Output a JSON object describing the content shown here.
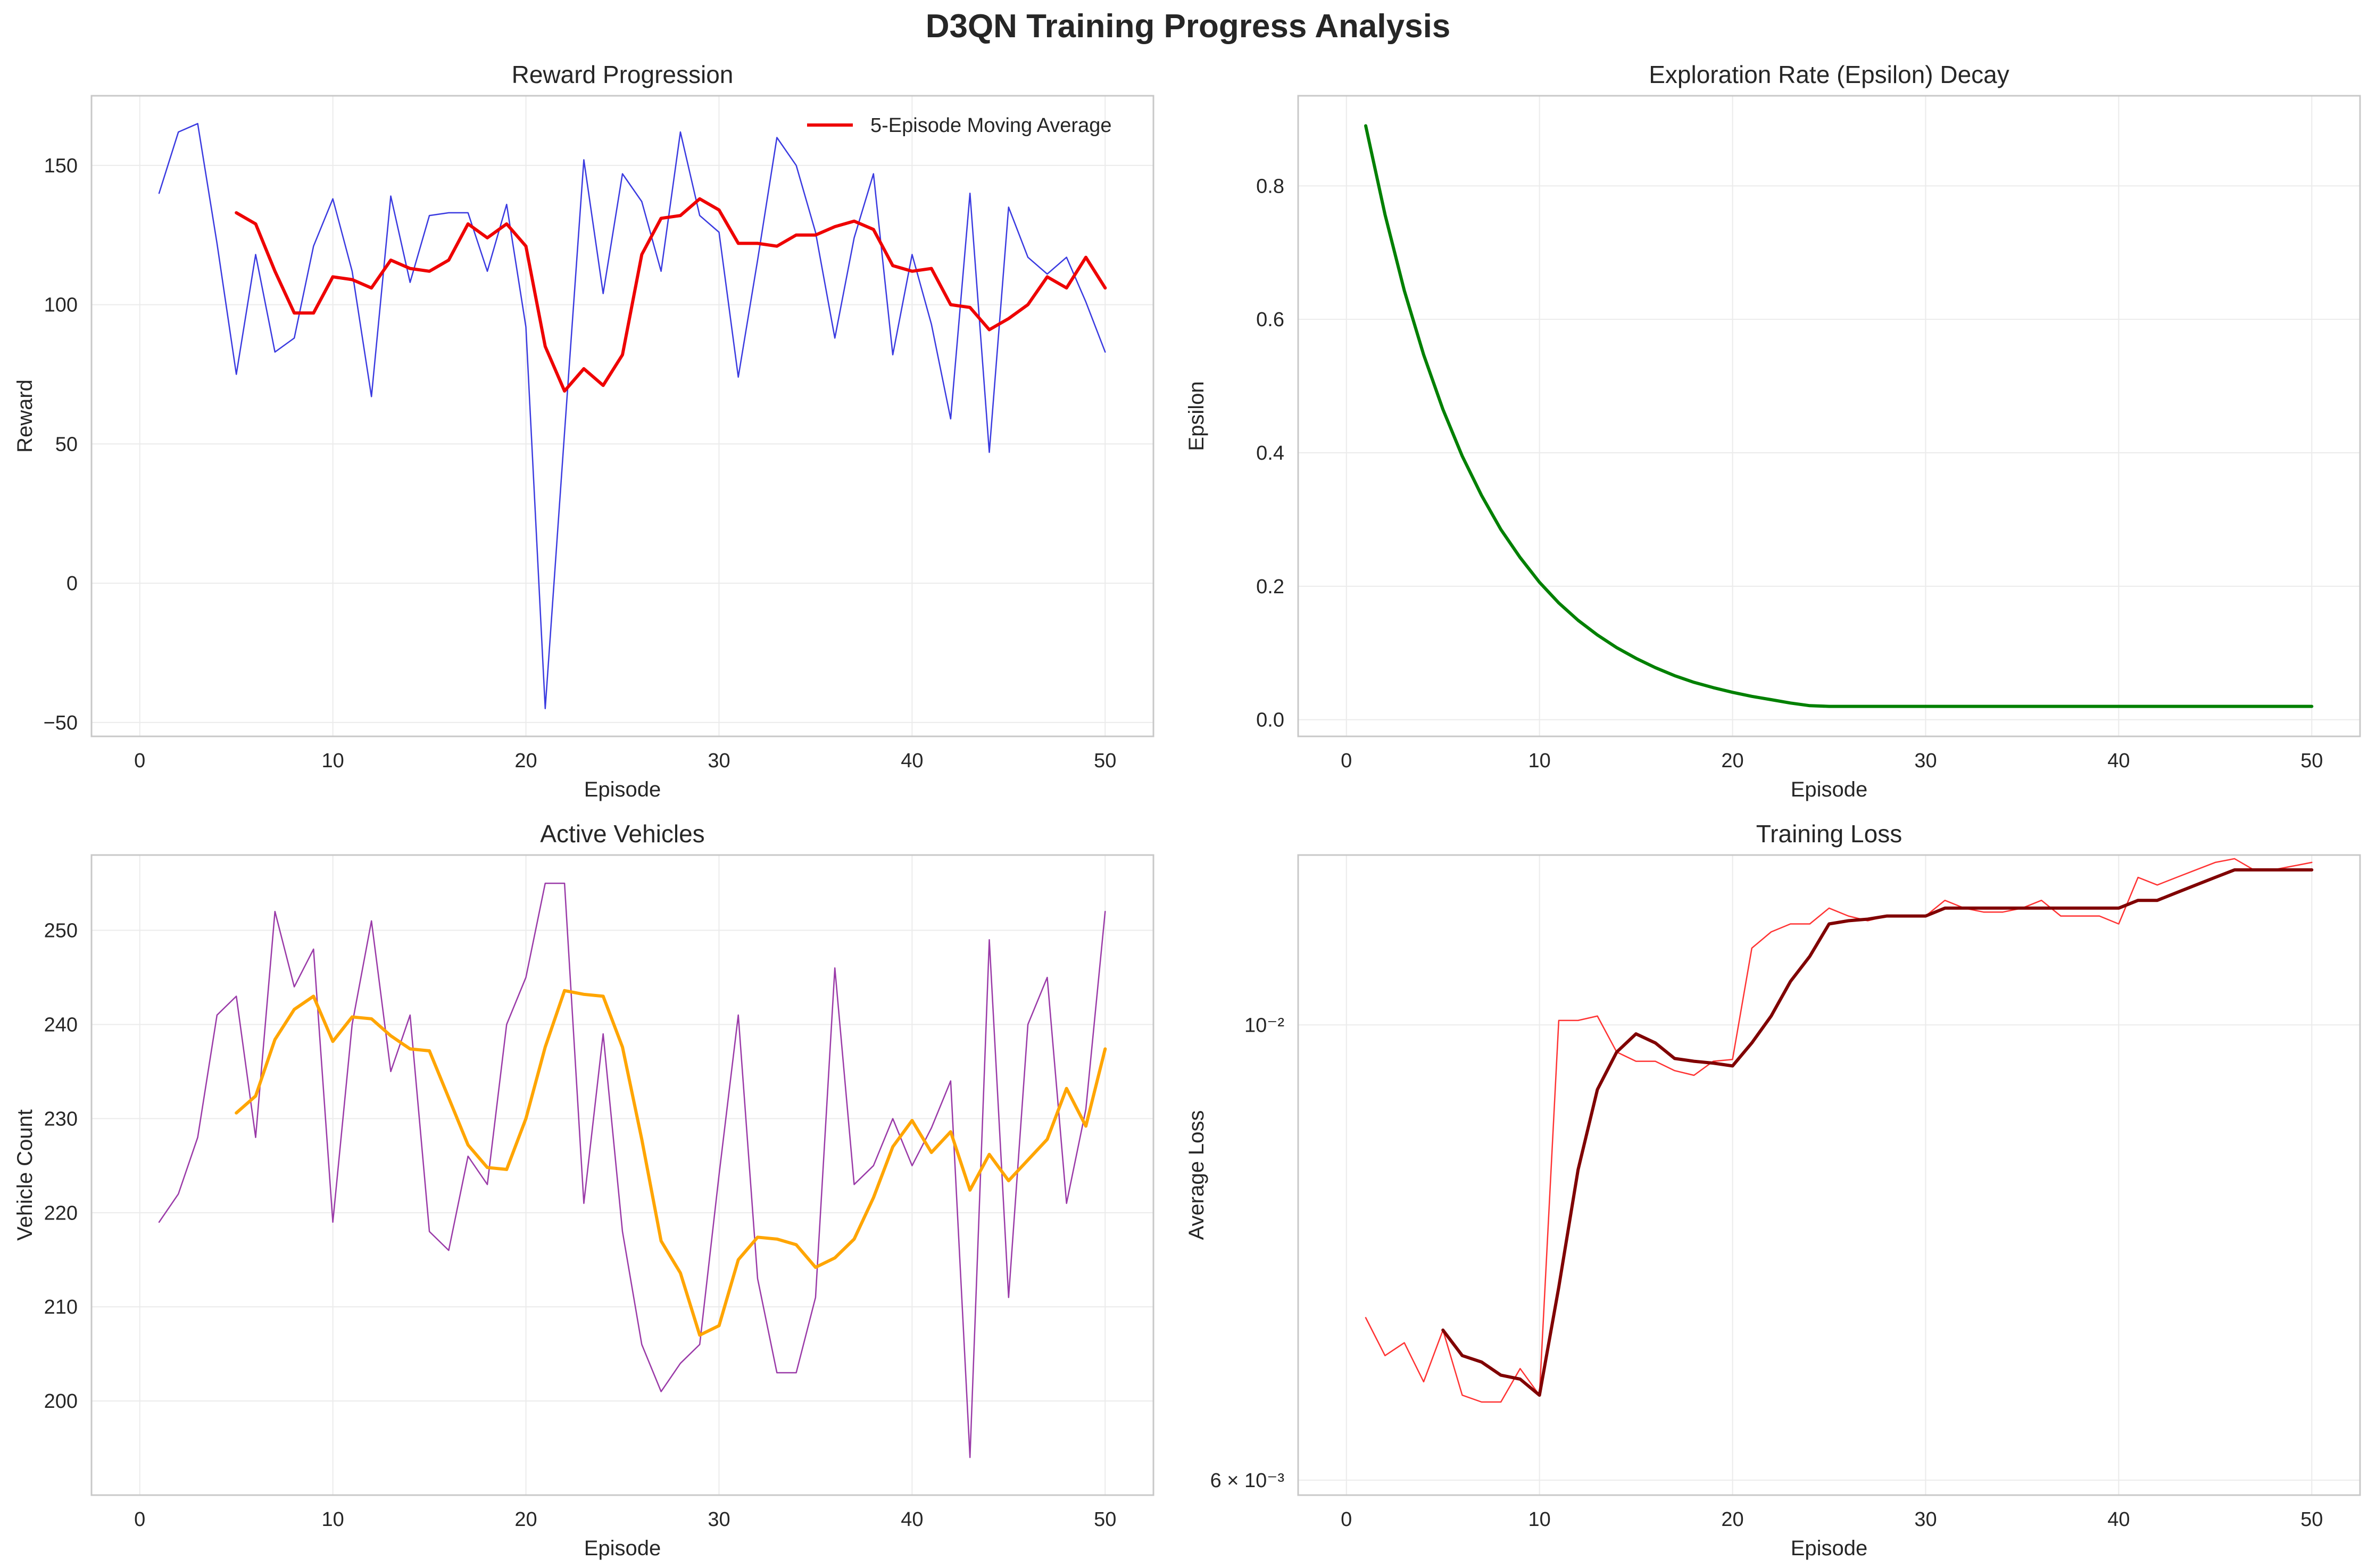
{
  "figure": {
    "title": "D3QN Training Progress Analysis"
  },
  "chart_data": [
    {
      "type": "line",
      "title": "Reward Progression",
      "xlabel": "Episode",
      "ylabel": "Reward",
      "xlim": [
        -2.5,
        52.5
      ],
      "ylim": [
        -55,
        175
      ],
      "xticks": [
        0,
        10,
        20,
        30,
        40,
        50
      ],
      "xtick_labels": [
        "0",
        "10",
        "20",
        "30",
        "40",
        "50"
      ],
      "yticks": [
        -50,
        0,
        50,
        100,
        150
      ],
      "ytick_labels": [
        "−50",
        "0",
        "50",
        "100",
        "150"
      ],
      "grid": true,
      "legend": "top-right",
      "series": [
        {
          "color": "#3a3ae0",
          "width": 2.5,
          "x": [
            1,
            2,
            3,
            4,
            5,
            6,
            7,
            8,
            9,
            10,
            11,
            12,
            13,
            14,
            15,
            16,
            17,
            18,
            19,
            20,
            21,
            22,
            23,
            24,
            25,
            26,
            27,
            28,
            29,
            30,
            31,
            32,
            33,
            34,
            35,
            36,
            37,
            38,
            39,
            40,
            41,
            42,
            43,
            44,
            45,
            46,
            47,
            48,
            49,
            50
          ],
          "y": [
            140,
            162,
            165,
            122,
            75,
            118,
            83,
            88,
            121,
            138,
            112,
            67,
            139,
            108,
            132,
            133,
            133,
            112,
            136,
            92,
            -45,
            54,
            152,
            104,
            147,
            137,
            112,
            162,
            132,
            126,
            74,
            116,
            160,
            150,
            126,
            88,
            124,
            147,
            82,
            118,
            93,
            59,
            140,
            47,
            135,
            117,
            111,
            117,
            101,
            83
          ]
        },
        {
          "name": "5-Episode Moving Average",
          "color": "#ee0000",
          "width": 6,
          "x": [
            5,
            6,
            7,
            8,
            9,
            10,
            11,
            12,
            13,
            14,
            15,
            16,
            17,
            18,
            19,
            20,
            21,
            22,
            23,
            24,
            25,
            26,
            27,
            28,
            29,
            30,
            31,
            32,
            33,
            34,
            35,
            36,
            37,
            38,
            39,
            40,
            41,
            42,
            43,
            44,
            45,
            46,
            47,
            48,
            49,
            50
          ],
          "y": [
            133,
            129,
            112,
            97,
            97,
            110,
            109,
            106,
            116,
            113,
            112,
            116,
            129,
            124,
            129,
            121,
            85,
            69,
            77,
            71,
            82,
            118,
            131,
            132,
            138,
            134,
            122,
            122,
            121,
            125,
            125,
            128,
            130,
            127,
            114,
            112,
            113,
            100,
            99,
            91,
            95,
            100,
            110,
            106,
            117,
            106
          ]
        }
      ]
    },
    {
      "type": "line",
      "title": "Exploration Rate (Epsilon) Decay",
      "xlabel": "Episode",
      "ylabel": "Epsilon",
      "xlim": [
        -2.5,
        52.5
      ],
      "ylim": [
        -0.025,
        0.935
      ],
      "xticks": [
        0,
        10,
        20,
        30,
        40,
        50
      ],
      "xtick_labels": [
        "0",
        "10",
        "20",
        "30",
        "40",
        "50"
      ],
      "yticks": [
        0.0,
        0.2,
        0.4,
        0.6,
        0.8
      ],
      "ytick_labels": [
        "0.0",
        "0.2",
        "0.4",
        "0.6",
        "0.8"
      ],
      "grid": true,
      "series": [
        {
          "color": "#008000",
          "width": 6,
          "x": [
            1,
            2,
            3,
            4,
            5,
            6,
            7,
            8,
            9,
            10,
            11,
            12,
            13,
            14,
            15,
            16,
            17,
            18,
            19,
            20,
            21,
            22,
            23,
            24,
            25,
            26,
            27,
            28,
            29,
            30,
            31,
            32,
            33,
            34,
            35,
            36,
            37,
            38,
            39,
            40,
            41,
            42,
            43,
            44,
            45,
            46,
            47,
            48,
            49,
            50
          ],
          "y": [
            0.89,
            0.757,
            0.643,
            0.547,
            0.465,
            0.395,
            0.336,
            0.285,
            0.243,
            0.206,
            0.175,
            0.149,
            0.127,
            0.108,
            0.092,
            0.078,
            0.066,
            0.056,
            0.048,
            0.041,
            0.035,
            0.03,
            0.025,
            0.021,
            0.02,
            0.02,
            0.02,
            0.02,
            0.02,
            0.02,
            0.02,
            0.02,
            0.02,
            0.02,
            0.02,
            0.02,
            0.02,
            0.02,
            0.02,
            0.02,
            0.02,
            0.02,
            0.02,
            0.02,
            0.02,
            0.02,
            0.02,
            0.02,
            0.02,
            0.02
          ]
        }
      ]
    },
    {
      "type": "line",
      "title": "Active Vehicles",
      "xlabel": "Episode",
      "ylabel": "Vehicle Count",
      "xlim": [
        -2.5,
        52.5
      ],
      "ylim": [
        190,
        258
      ],
      "xticks": [
        0,
        10,
        20,
        30,
        40,
        50
      ],
      "xtick_labels": [
        "0",
        "10",
        "20",
        "30",
        "40",
        "50"
      ],
      "yticks": [
        200,
        210,
        220,
        230,
        240,
        250
      ],
      "ytick_labels": [
        "200",
        "210",
        "220",
        "230",
        "240",
        "250"
      ],
      "grid": true,
      "series": [
        {
          "color": "#9a3aa8",
          "width": 2.5,
          "x": [
            1,
            2,
            3,
            4,
            5,
            6,
            7,
            8,
            9,
            10,
            11,
            12,
            13,
            14,
            15,
            16,
            17,
            18,
            19,
            20,
            21,
            22,
            23,
            24,
            25,
            26,
            27,
            28,
            29,
            30,
            31,
            32,
            33,
            34,
            35,
            36,
            37,
            38,
            39,
            40,
            41,
            42,
            43,
            44,
            45,
            46,
            47,
            48,
            49,
            50
          ],
          "y": [
            219,
            222,
            228,
            241,
            243,
            228,
            252,
            244,
            248,
            219,
            240,
            251,
            235,
            241,
            218,
            216,
            226,
            223,
            240,
            245,
            255,
            255,
            221,
            239,
            218,
            206,
            201,
            204,
            206,
            224,
            241,
            213,
            203,
            203,
            211,
            246,
            223,
            225,
            230,
            225,
            229,
            234,
            194,
            249,
            211,
            240,
            245,
            221,
            231,
            252
          ]
        },
        {
          "color": "#ffa500",
          "width": 6,
          "x": [
            5,
            6,
            7,
            8,
            9,
            10,
            11,
            12,
            13,
            14,
            15,
            16,
            17,
            18,
            19,
            20,
            21,
            22,
            23,
            24,
            25,
            26,
            27,
            28,
            29,
            30,
            31,
            32,
            33,
            34,
            35,
            36,
            37,
            38,
            39,
            40,
            41,
            42,
            43,
            44,
            45,
            46,
            47,
            48,
            49,
            50
          ],
          "y": [
            230.6,
            232.4,
            238.4,
            241.6,
            243,
            238.2,
            240.8,
            240.6,
            238.8,
            237.4,
            237.2,
            232.2,
            227.2,
            224.8,
            224.6,
            230,
            237.6,
            243.6,
            243.2,
            243,
            237.6,
            227.8,
            217,
            213.6,
            207,
            208,
            215,
            217.4,
            217.2,
            216.6,
            214.2,
            215.2,
            217.2,
            221.6,
            227,
            229.8,
            226.4,
            228.6,
            222.4,
            226.2,
            223.4,
            225.6,
            227.8,
            233.2,
            229.2,
            237.4
          ]
        }
      ]
    },
    {
      "type": "line",
      "title": "Training Loss",
      "xlabel": "Episode",
      "ylabel": "Average Loss",
      "yscale": "log",
      "xlim": [
        -2.5,
        52.5
      ],
      "ylim": [
        0.0059,
        0.0121
      ],
      "xticks": [
        0,
        10,
        20,
        30,
        40,
        50
      ],
      "xtick_labels": [
        "0",
        "10",
        "20",
        "30",
        "40",
        "50"
      ],
      "yticks": [
        0.006,
        0.01
      ],
      "ytick_labels": [
        "6 × 10⁻³",
        "10⁻²"
      ],
      "grid": true,
      "series": [
        {
          "color": "#ff3333",
          "width": 2.5,
          "x": [
            1,
            2,
            3,
            4,
            5,
            6,
            7,
            8,
            9,
            10,
            11,
            12,
            13,
            14,
            15,
            16,
            17,
            18,
            19,
            20,
            21,
            22,
            23,
            24,
            25,
            26,
            27,
            28,
            29,
            30,
            31,
            32,
            33,
            34,
            35,
            36,
            37,
            38,
            39,
            40,
            41,
            42,
            43,
            44,
            45,
            46,
            47,
            48,
            49,
            50
          ],
          "y": [
            0.0072,
            0.0069,
            0.007,
            0.0067,
            0.0071,
            0.0066,
            0.00655,
            0.00655,
            0.0068,
            0.0066,
            0.01005,
            0.01005,
            0.0101,
            0.0097,
            0.0096,
            0.0096,
            0.0095,
            0.00945,
            0.0096,
            0.00962,
            0.0109,
            0.0111,
            0.0112,
            0.0112,
            0.0114,
            0.0113,
            0.01124,
            0.0113,
            0.0113,
            0.0113,
            0.0115,
            0.0114,
            0.01135,
            0.01135,
            0.0114,
            0.0115,
            0.0113,
            0.0113,
            0.0113,
            0.0112,
            0.0118,
            0.0117,
            0.0118,
            0.0119,
            0.012,
            0.01205,
            0.0119,
            0.0119,
            0.01195,
            0.012
          ]
        },
        {
          "color": "#800000",
          "width": 6,
          "x": [
            5,
            6,
            7,
            8,
            9,
            10,
            11,
            12,
            13,
            14,
            15,
            16,
            17,
            18,
            19,
            20,
            21,
            22,
            23,
            24,
            25,
            26,
            27,
            28,
            29,
            30,
            31,
            32,
            33,
            34,
            35,
            36,
            37,
            38,
            39,
            40,
            41,
            42,
            43,
            44,
            45,
            46,
            47,
            48,
            49,
            50
          ],
          "y": [
            0.0071,
            0.0069,
            0.00685,
            0.00675,
            0.00672,
            0.0066,
            0.00745,
            0.0085,
            0.0093,
            0.0097,
            0.0099,
            0.0098,
            0.00963,
            0.0096,
            0.00958,
            0.00955,
            0.0098,
            0.0101,
            0.0105,
            0.0108,
            0.0112,
            0.01124,
            0.01126,
            0.0113,
            0.0113,
            0.0113,
            0.0114,
            0.0114,
            0.0114,
            0.0114,
            0.0114,
            0.0114,
            0.0114,
            0.0114,
            0.0114,
            0.0114,
            0.0115,
            0.0115,
            0.0116,
            0.0117,
            0.0118,
            0.0119,
            0.0119,
            0.0119,
            0.0119,
            0.0119
          ]
        }
      ]
    }
  ]
}
